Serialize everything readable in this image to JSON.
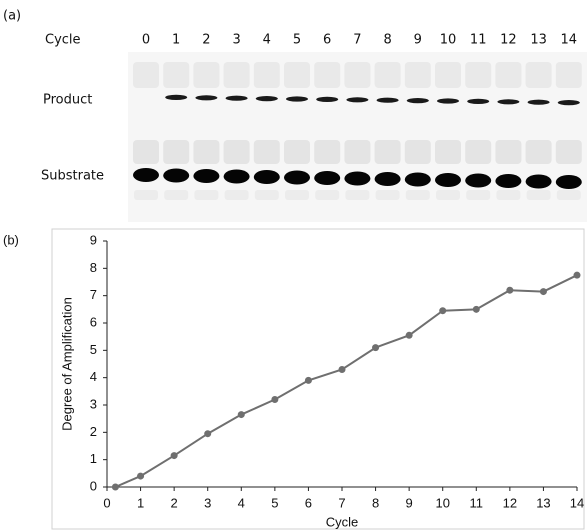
{
  "panel_a": {
    "label": "(a)",
    "lane_title": "Cycle",
    "lanes": [
      0,
      1,
      2,
      3,
      4,
      5,
      6,
      7,
      8,
      9,
      10,
      11,
      12,
      13,
      14
    ],
    "rows": [
      "Product",
      "Substrate"
    ]
  },
  "chart_data": {
    "type": "line",
    "panel_label": "(b)",
    "xlabel": "Cycle",
    "ylabel": "Degree of Amplification",
    "x": [
      0.25,
      1,
      2,
      3,
      4,
      5,
      6,
      7,
      8,
      9,
      10,
      11,
      12,
      13,
      14
    ],
    "series": [
      {
        "name": "Degree of Amplification",
        "color": "#6f6f6f",
        "values": [
          0,
          0.4,
          1.15,
          1.95,
          2.65,
          3.2,
          3.9,
          4.3,
          5.1,
          5.55,
          6.45,
          6.5,
          7.2,
          7.15,
          7.75
        ]
      }
    ],
    "xlim": [
      0,
      14
    ],
    "xticks": [
      0,
      1,
      2,
      3,
      4,
      5,
      6,
      7,
      8,
      9,
      10,
      11,
      12,
      13,
      14
    ],
    "ylim": [
      0,
      9
    ],
    "yticks": [
      0,
      1,
      2,
      3,
      4,
      5,
      6,
      7,
      8,
      9
    ],
    "grid": false
  }
}
